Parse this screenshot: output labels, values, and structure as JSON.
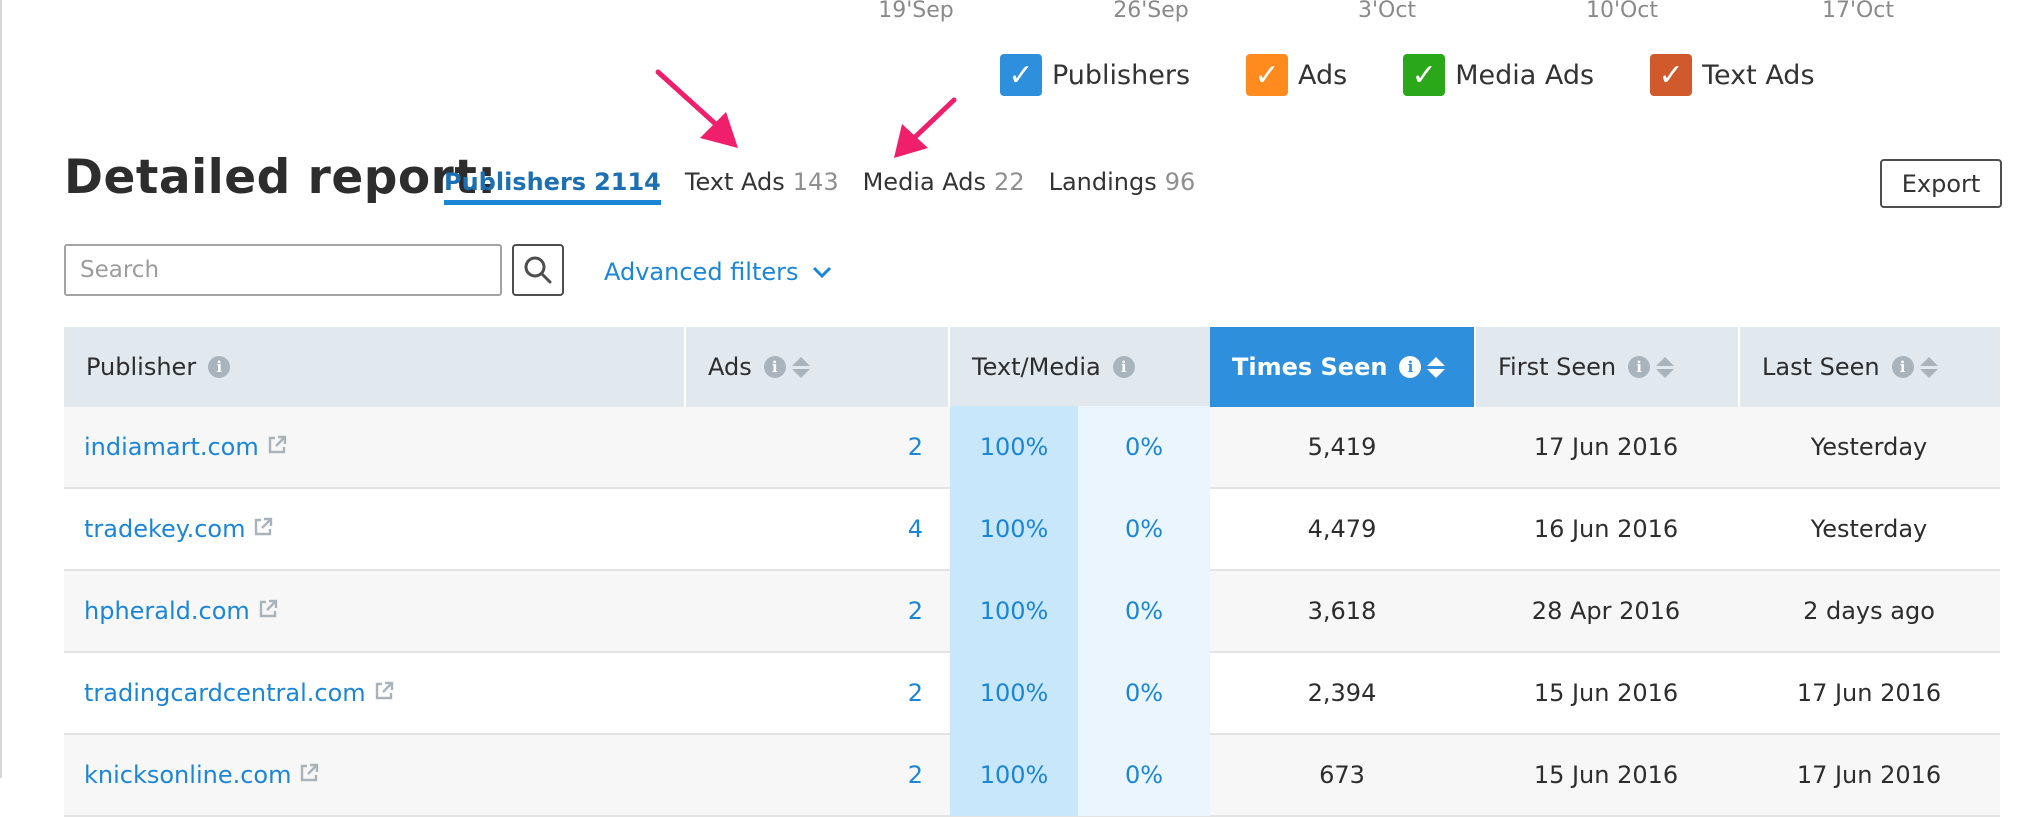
{
  "date_axis": [
    "19'Sep",
    "26'Sep",
    "3'Oct",
    "10'Oct",
    "17'Oct"
  ],
  "legend": [
    {
      "label": "Publishers",
      "color": "#2e8fdc",
      "checked": true
    },
    {
      "label": "Ads",
      "color": "#ff8a1e",
      "checked": true
    },
    {
      "label": "Media Ads",
      "color": "#2aa81a",
      "checked": true
    },
    {
      "label": "Text Ads",
      "color": "#d05a2b",
      "checked": true
    }
  ],
  "report": {
    "title": "Detailed report:",
    "tabs": [
      {
        "label": "Publishers",
        "count": "2114",
        "active": true
      },
      {
        "label": "Text Ads",
        "count": "143",
        "active": false
      },
      {
        "label": "Media Ads",
        "count": "22",
        "active": false
      },
      {
        "label": "Landings",
        "count": "96",
        "active": false
      }
    ],
    "export_label": "Export"
  },
  "search": {
    "placeholder": "Search",
    "value": ""
  },
  "advanced_filters_label": "Advanced filters",
  "table": {
    "headers": {
      "publisher": "Publisher",
      "ads": "Ads",
      "text_media": "Text/Media",
      "times_seen": "Times Seen",
      "first_seen": "First Seen",
      "last_seen": "Last Seen"
    },
    "sorted_column": "times_seen",
    "rows": [
      {
        "publisher": "indiamart.com",
        "ads": "2",
        "text": "100%",
        "media": "0%",
        "times_seen": "5,419",
        "first_seen": "17 Jun 2016",
        "last_seen": "Yesterday"
      },
      {
        "publisher": "tradekey.com",
        "ads": "4",
        "text": "100%",
        "media": "0%",
        "times_seen": "4,479",
        "first_seen": "16 Jun 2016",
        "last_seen": "Yesterday"
      },
      {
        "publisher": "hpherald.com",
        "ads": "2",
        "text": "100%",
        "media": "0%",
        "times_seen": "3,618",
        "first_seen": "28 Apr 2016",
        "last_seen": "2 days ago"
      },
      {
        "publisher": "tradingcardcentral.com",
        "ads": "2",
        "text": "100%",
        "media": "0%",
        "times_seen": "2,394",
        "first_seen": "15 Jun 2016",
        "last_seen": "17 Jun 2016"
      },
      {
        "publisher": "knicksonline.com",
        "ads": "2",
        "text": "100%",
        "media": "0%",
        "times_seen": "673",
        "first_seen": "15 Jun 2016",
        "last_seen": "17 Jun 2016"
      }
    ]
  },
  "annotation_color": "#ef1f6b"
}
